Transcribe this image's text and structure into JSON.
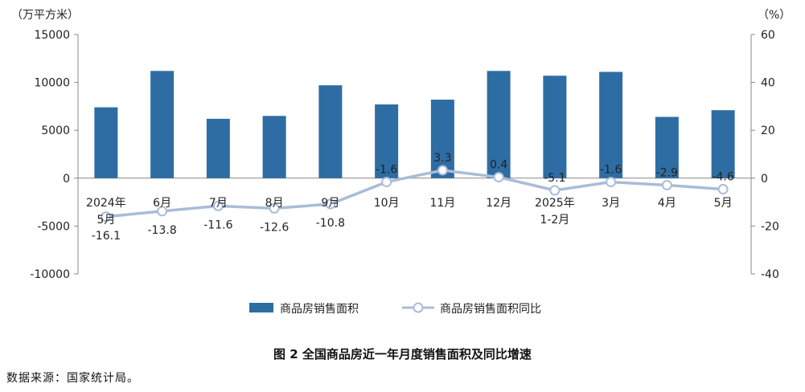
{
  "chart_data": {
    "type": "bar+line",
    "categories": [
      "2024年|5月",
      "6月",
      "7月",
      "8月",
      "9月",
      "10月",
      "11月",
      "12月",
      "2025年|1-2月",
      "3月",
      "4月",
      "5月"
    ],
    "series": [
      {
        "name": "商品房销售面积",
        "type": "bar",
        "axis": "left",
        "color": "#2e6da4",
        "values": [
          7400,
          11200,
          6200,
          6500,
          9700,
          7700,
          8200,
          11200,
          10700,
          11100,
          6400,
          7100
        ]
      },
      {
        "name": "商品房销售面积同比",
        "type": "line",
        "axis": "right",
        "color": "#a9bcd8",
        "values": [
          -16.1,
          -13.8,
          -11.6,
          -12.6,
          -10.8,
          -1.6,
          3.3,
          0.4,
          -5.1,
          -1.6,
          -2.9,
          -4.6
        ],
        "labels": [
          "-16.1",
          "-13.8",
          "-11.6",
          "-12.6",
          "-10.8",
          "-1.6",
          "3.3",
          "0.4",
          "-5.1",
          "-1.6",
          "-2.9",
          "-4.6"
        ]
      }
    ],
    "y_left": {
      "unit": "（万平方米）",
      "ylim": [
        -10000,
        15000
      ],
      "ticks": [
        "15000",
        "10000",
        "5000",
        "0",
        "-5000",
        "-10000"
      ],
      "tick_values": [
        15000,
        10000,
        5000,
        0,
        -5000,
        -10000
      ]
    },
    "y_right": {
      "unit": "（%）",
      "ylim": [
        -40,
        60
      ],
      "ticks": [
        "60",
        "40",
        "20",
        "0",
        "-20",
        "-40"
      ],
      "tick_values": [
        60,
        40,
        20,
        0,
        -20,
        -40
      ]
    },
    "legend": {
      "placement": "bottom",
      "items": [
        "商品房销售面积",
        "商品房销售面积同比"
      ]
    },
    "grid": false
  },
  "caption": "图 2 全国商品房近一年月度销售面积及同比增速",
  "source": "数据来源：国家统计局。"
}
